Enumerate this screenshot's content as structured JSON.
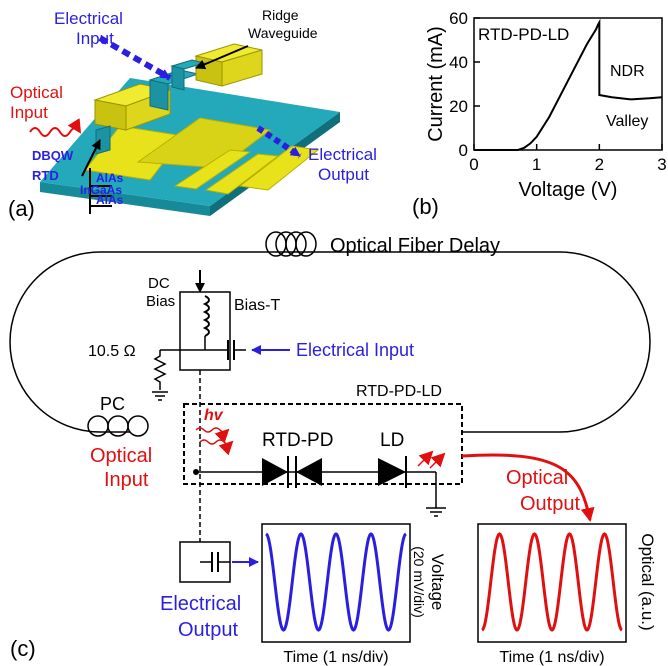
{
  "panel_a": {
    "label": "(a)",
    "electrical_input": [
      "Electrical",
      "Input"
    ],
    "ridge_waveguide": [
      "Ridge",
      "Waveguide"
    ],
    "optical_input": [
      "Optical",
      "Input"
    ],
    "electrical_output": [
      "Electrical",
      "Output"
    ],
    "dbqw": "DBQW",
    "rtd": "RTD",
    "layers": [
      "AlAs",
      "InGaAs",
      "AlAs"
    ]
  },
  "panel_b": {
    "label": "(b)",
    "curve_label": "RTD-PD-LD",
    "ndr_label": "NDR",
    "valley_label": "Valley"
  },
  "panel_c": {
    "label": "(c)",
    "fiber_delay": "Optical Fiber Delay",
    "dc": "DC",
    "bias": "Bias",
    "bias_t": "Bias-T",
    "resistor": "10.5 Ω",
    "electrical_input": "Electrical Input",
    "pc": "PC",
    "module": "RTD-PD-LD",
    "hv": "hv",
    "rtd_pd": "RTD-PD",
    "ld": "LD",
    "optical_input": [
      "Optical",
      "Input"
    ],
    "optical_output": [
      "Optical",
      "Output"
    ],
    "electrical_output": [
      "Electrical",
      "Output"
    ],
    "voltage_ylabel": [
      "Voltage",
      "(20 mV/div)"
    ],
    "optical_ylabel": "Optical (a.u.)",
    "time_label_left": "Time (1 ns/div)",
    "time_label_right": "Time (1 ns/div)"
  },
  "colors": {
    "blue": "#2a1fe0",
    "red": "#e01010",
    "yellow": "#e8e21a",
    "teal": "#23a9b9"
  },
  "chart_data": [
    {
      "type": "line",
      "title": "",
      "xlabel": "Voltage (V)",
      "ylabel": "Current (mA)",
      "xlim": [
        0,
        3
      ],
      "ylim": [
        0,
        60
      ],
      "x_ticks": [
        0,
        1,
        2,
        3
      ],
      "y_ticks": [
        0,
        20,
        40,
        60
      ],
      "grid": false,
      "series": [
        {
          "name": "RTD-PD-LD",
          "x": [
            0,
            0.7,
            0.8,
            0.9,
            1.0,
            1.2,
            1.4,
            1.6,
            1.8,
            1.95,
            1.98,
            2.0,
            2.0,
            2.2,
            2.5,
            2.8,
            3.0
          ],
          "y": [
            0,
            0,
            1,
            3,
            6,
            15,
            26,
            37,
            48,
            55,
            57,
            58,
            25,
            24,
            23,
            23.5,
            24
          ]
        }
      ]
    },
    {
      "type": "line",
      "title": "",
      "xlabel": "Time (1 ns/div)",
      "ylabel": "Voltage (20 mV/div)",
      "periods": 4,
      "series": [
        {
          "name": "Electrical Output",
          "color": "#2a1fe0"
        }
      ]
    },
    {
      "type": "line",
      "title": "",
      "xlabel": "Time (1 ns/div)",
      "ylabel": "Optical (a.u.)",
      "periods": 4,
      "series": [
        {
          "name": "Optical Output",
          "color": "#e01010"
        }
      ]
    }
  ]
}
